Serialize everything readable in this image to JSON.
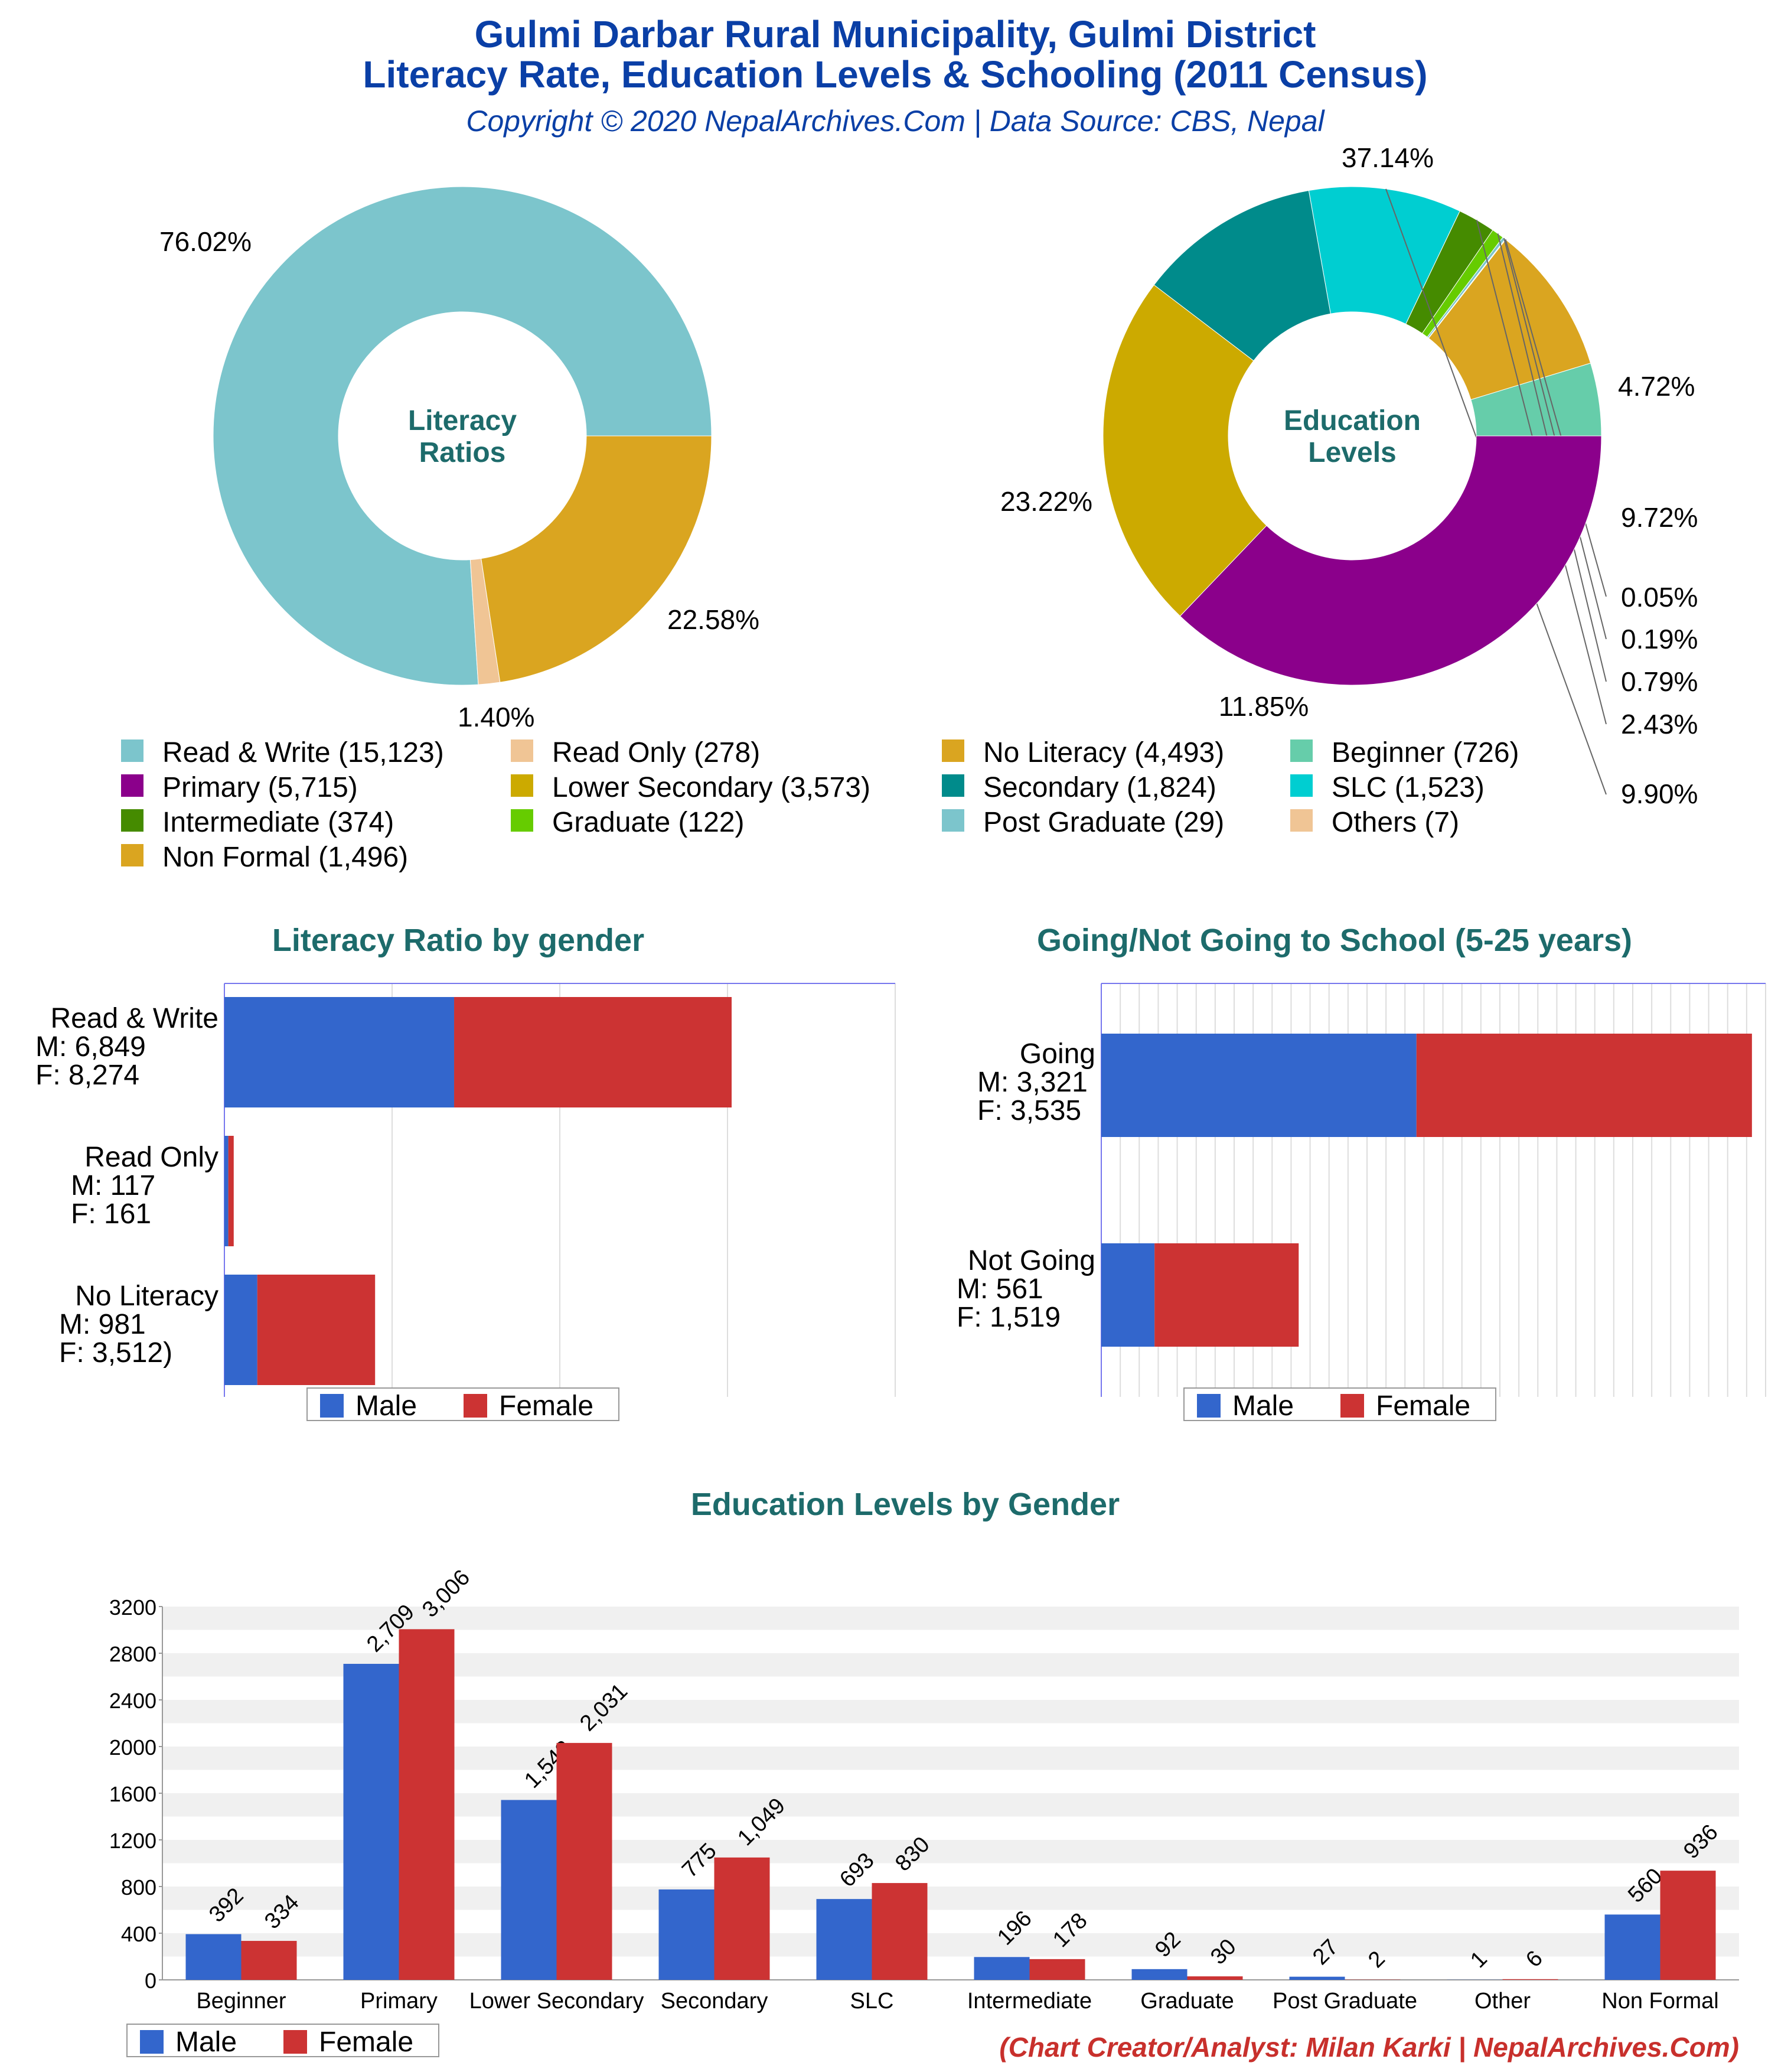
{
  "header": {
    "title_line1": "Gulmi Darbar Rural Municipality, Gulmi District",
    "title_line2": "Literacy Rate, Education Levels & Schooling (2011 Census)",
    "copyright": "Copyright © 2020 NepalArchives.Com | Data Source: CBS, Nepal"
  },
  "footer": {
    "credit": "(Chart Creator/Analyst: Milan Karki | NepalArchives.Com)"
  },
  "colors": {
    "male": "#3366cc",
    "female": "#cc3333",
    "title": "#0a3fa6",
    "section": "#1d6b6b"
  },
  "legend_items": [
    {
      "label": "Read & Write (15,123)",
      "color": "#7cc5cc"
    },
    {
      "label": "Read Only (278)",
      "color": "#f0c595"
    },
    {
      "label": "No Literacy (4,493)",
      "color": "#daa520"
    },
    {
      "label": "Beginner (726)",
      "color": "#66cdaa"
    },
    {
      "label": "Primary (5,715)",
      "color": "#8b008b"
    },
    {
      "label": "Lower Secondary (3,573)",
      "color": "#ccaa00"
    },
    {
      "label": "Secondary (1,824)",
      "color": "#008b8b"
    },
    {
      "label": "SLC (1,523)",
      "color": "#00ced1"
    },
    {
      "label": "Intermediate (374)",
      "color": "#458b00"
    },
    {
      "label": "Graduate (122)",
      "color": "#66cc00"
    },
    {
      "label": "Post Graduate (29)",
      "color": "#7cc5cc"
    },
    {
      "label": "Others (7)",
      "color": "#f0c595"
    },
    {
      "label": "Non Formal (1,496)",
      "color": "#daa520"
    }
  ],
  "chart_data": [
    {
      "type": "pie",
      "title": "Literacy Ratios",
      "labels": [
        "Read & Write",
        "Read Only",
        "No Literacy"
      ],
      "values": [
        15123,
        278,
        4493
      ],
      "data_labels": [
        "76.02%",
        "1.40%",
        "22.58%"
      ],
      "colors": [
        "#7cc5cc",
        "#f0c595",
        "#daa520"
      ]
    },
    {
      "type": "pie",
      "title": "Education Levels",
      "labels": [
        "Beginner",
        "Non Formal",
        "Others",
        "Post Graduate",
        "Graduate",
        "Intermediate",
        "SLC",
        "Secondary",
        "Lower Secondary",
        "Primary"
      ],
      "values": [
        726,
        1496,
        7,
        29,
        122,
        374,
        1523,
        1824,
        3573,
        5715
      ],
      "data_labels": [
        "4.72%",
        "9.72%",
        "0.05%",
        "0.19%",
        "0.79%",
        "2.43%",
        "9.90%",
        "11.85%",
        "23.22%",
        "37.14%"
      ],
      "colors": [
        "#66cdaa",
        "#daa520",
        "#f0c595",
        "#7cc5cc",
        "#66cc00",
        "#458b00",
        "#00ced1",
        "#008b8b",
        "#ccaa00",
        "#8b008b"
      ]
    },
    {
      "type": "bar",
      "orientation": "horizontal",
      "stacked": true,
      "title": "Literacy Ratio by gender",
      "categories": [
        "Read & Write",
        "Read Only",
        "No Literacy"
      ],
      "category_labels": [
        [
          "Read & Write",
          "M: 6,849",
          "F: 8,274"
        ],
        [
          "Read Only",
          "M: 117",
          "F: 161"
        ],
        [
          "No Literacy",
          "M: 981",
          "F: 3,512)"
        ]
      ],
      "series": [
        {
          "name": "Male",
          "values": [
            6849,
            117,
            981
          ]
        },
        {
          "name": "Female",
          "values": [
            8274,
            161,
            3512
          ]
        }
      ],
      "xlim": [
        0,
        20000
      ],
      "legend": "bottom"
    },
    {
      "type": "bar",
      "orientation": "horizontal",
      "stacked": true,
      "title": "Going/Not Going to School (5-25 years)",
      "categories": [
        "Going",
        "Not Going"
      ],
      "category_labels": [
        [
          "Going",
          "M: 3,321",
          "F: 3,535"
        ],
        [
          "Not Going",
          "M: 561",
          "F: 1,519"
        ]
      ],
      "series": [
        {
          "name": "Male",
          "values": [
            3321,
            561
          ]
        },
        {
          "name": "Female",
          "values": [
            3535,
            1519
          ]
        }
      ],
      "xlim": [
        0,
        7000
      ],
      "legend": "bottom"
    },
    {
      "type": "bar",
      "title": "Education Levels by Gender",
      "categories": [
        "Beginner",
        "Primary",
        "Lower Secondary",
        "Secondary",
        "SLC",
        "Intermediate",
        "Graduate",
        "Post Graduate",
        "Other",
        "Non Formal"
      ],
      "series": [
        {
          "name": "Male",
          "values": [
            392,
            2709,
            1542,
            775,
            693,
            196,
            92,
            27,
            1,
            560
          ],
          "labels": [
            "392",
            "2,709",
            "1,542",
            "775",
            "693",
            "196",
            "92",
            "27",
            "1",
            "560"
          ]
        },
        {
          "name": "Female",
          "values": [
            334,
            3006,
            2031,
            1049,
            830,
            178,
            30,
            2,
            6,
            936
          ],
          "labels": [
            "334",
            "3,006",
            "2,031",
            "1,049",
            "830",
            "178",
            "30",
            "2",
            "6",
            "936"
          ]
        }
      ],
      "yticks": [
        "0",
        "400",
        "800",
        "1200",
        "1600",
        "2000",
        "2400",
        "2800",
        "3200"
      ],
      "ylim": [
        0,
        3200
      ],
      "grid": true,
      "legend": "bottom-left"
    }
  ]
}
